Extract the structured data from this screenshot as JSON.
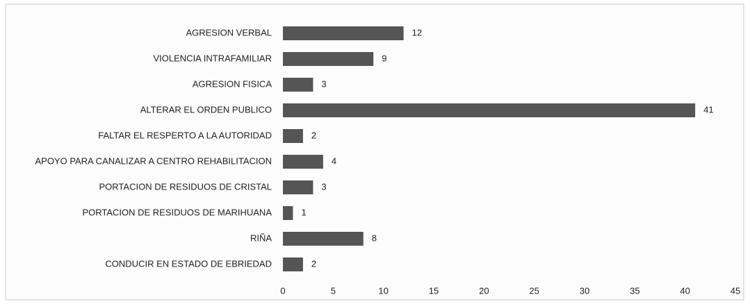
{
  "chart_data": {
    "type": "bar",
    "orientation": "horizontal",
    "categories": [
      "AGRESION VERBAL",
      "VIOLENCIA INTRAFAMILIAR",
      "AGRESION FISICA",
      "ALTERAR EL ORDEN PUBLICO",
      "FALTAR EL RESPERTO A LA AUTORIDAD",
      "APOYO PARA CANALIZAR A CENTRO REHABILITACION",
      "PORTACION DE RESIDUOS DE CRISTAL",
      "PORTACION DE RESIDUOS DE MARIHUANA",
      "RIÑA",
      "CONDUCIR EN ESTADO DE EBRIEDAD"
    ],
    "values": [
      12,
      9,
      3,
      41,
      2,
      4,
      3,
      1,
      8,
      2
    ],
    "color": "#555555",
    "xlim": [
      0,
      45
    ],
    "xticks": [
      0,
      5,
      10,
      15,
      20,
      25,
      30,
      35,
      40,
      45
    ],
    "grid": false
  }
}
